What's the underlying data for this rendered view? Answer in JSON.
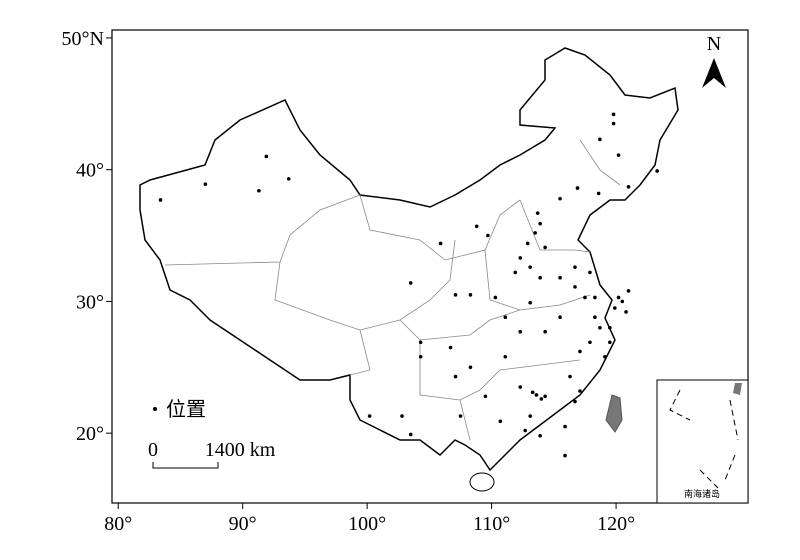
{
  "map": {
    "xlim": [
      79.5,
      130.6
    ],
    "ylim": [
      14.7,
      50.6
    ],
    "xticks": [
      {
        "value": 80,
        "label": "80°"
      },
      {
        "value": 90,
        "label": "90°"
      },
      {
        "value": 100,
        "label": "100°"
      },
      {
        "value": 110,
        "label": "110°"
      },
      {
        "value": 120,
        "label": "120°"
      }
    ],
    "yticks": [
      {
        "value": 20,
        "label": "20°"
      },
      {
        "value": 30,
        "label": "30°"
      },
      {
        "value": 40,
        "label": "40°"
      },
      {
        "value": 50,
        "label": "50°N"
      }
    ],
    "north_label": "N",
    "legend_label": "位置",
    "point_color": "#000000",
    "scale_bar": {
      "start_label": "0",
      "end_label": "1400 km"
    },
    "inset_label": "南海诸岛",
    "points": {
      "lon": [
        83.4,
        87.0,
        91.9,
        91.3,
        93.7,
        119.8,
        119.8,
        118.7,
        120.2,
        123.3,
        121.0,
        118.6,
        116.9,
        115.5,
        113.7,
        113.9,
        113.5,
        112.9,
        114.3,
        112.3,
        113.1,
        111.9,
        113.9,
        115.5,
        116.7,
        117.9,
        116.7,
        117.5,
        118.3,
        118.7,
        117.9,
        117.1,
        116.3,
        117.1,
        116.7,
        114.3,
        113.1,
        112.7,
        113.9,
        115.9,
        110.7,
        109.5,
        108.3,
        106.7,
        104.3,
        104.3,
        105.9,
        108.8,
        109.7,
        103.5,
        107.1,
        108.3,
        110.3,
        111.1,
        112.3,
        114.3,
        115.5,
        113.1,
        111.1,
        107.1,
        107.5,
        103.5,
        102.8,
        100.2,
        112.3,
        115.9,
        119.5,
        119.1,
        119.5,
        118.3,
        120.2,
        120.5,
        121.0,
        119.9,
        120.8,
        113.3,
        113.6,
        114.0
      ],
      "lat": [
        37.7,
        38.9,
        41.0,
        38.4,
        39.3,
        44.2,
        43.5,
        42.3,
        41.1,
        39.9,
        38.7,
        38.2,
        38.6,
        37.8,
        36.7,
        35.9,
        35.2,
        34.4,
        34.1,
        33.3,
        32.6,
        32.2,
        31.8,
        31.8,
        32.6,
        32.2,
        31.1,
        30.3,
        28.8,
        28.0,
        26.9,
        26.2,
        24.3,
        23.2,
        22.4,
        22.8,
        21.3,
        20.2,
        19.8,
        20.5,
        20.9,
        22.8,
        25.0,
        26.5,
        26.9,
        25.8,
        34.4,
        35.7,
        35.0,
        31.4,
        30.5,
        30.5,
        30.3,
        28.8,
        27.7,
        27.7,
        28.8,
        29.9,
        25.8,
        24.3,
        21.3,
        19.9,
        21.3,
        21.3,
        23.5,
        18.3,
        28.0,
        25.8,
        26.9,
        30.3,
        30.3,
        30.0,
        30.8,
        29.5,
        29.2,
        23.1,
        22.9,
        22.6
      ]
    }
  }
}
